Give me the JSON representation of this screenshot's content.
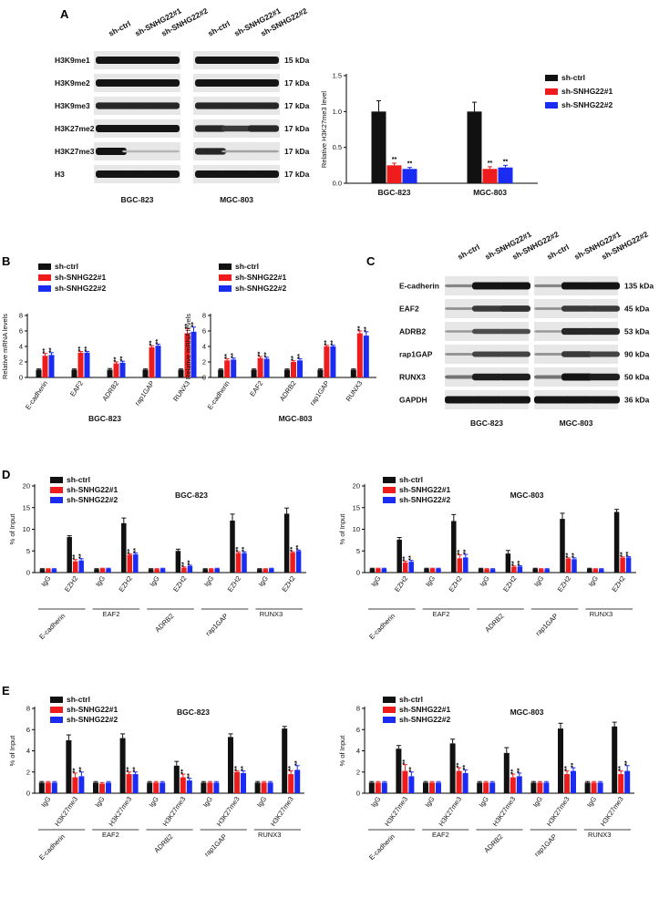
{
  "colors": {
    "ctrl": "#111111",
    "sh1": "#ee1c1c",
    "sh2": "#1a2cf2"
  },
  "legend": {
    "ctrl": "sh-ctrl",
    "sh1": "sh-SNHG22#1",
    "sh2": "sh-SNHG22#2"
  },
  "sig": "**",
  "panelA": {
    "letter": "A",
    "lane_headers": [
      "sh-ctrl",
      "sh-SNHG22#1",
      "sh-SNHG22#2"
    ],
    "rows": [
      {
        "label": "H3K9me1",
        "kda": "15 kDa"
      },
      {
        "label": "H3K9me2",
        "kda": "17 kDa"
      },
      {
        "label": "H3K9me3",
        "kda": "17 kDa"
      },
      {
        "label": "H3K27me2",
        "kda": "17 kDa"
      },
      {
        "label": "H3K27me3",
        "kda": "17 kDa"
      },
      {
        "label": "H3",
        "kda": "17 kDa"
      }
    ],
    "groups": [
      "BGC-823",
      "MGC-803"
    ]
  },
  "panelC": {
    "letter": "C",
    "lane_headers": [
      "sh-ctrl",
      "sh-SNHG22#1",
      "sh-SNHG22#2"
    ],
    "rows": [
      {
        "label": "E-cadherin",
        "kda": "135 kDa"
      },
      {
        "label": "EAF2",
        "kda": "45 kDa"
      },
      {
        "label": "ADRB2",
        "kda": "53 kDa"
      },
      {
        "label": "rap1GAP",
        "kda": "90 kDa"
      },
      {
        "label": "RUNX3",
        "kda": "50 kDa"
      },
      {
        "label": "GAPDH",
        "kda": "36 kDa"
      }
    ],
    "groups": [
      "BGC-823",
      "MGC-803"
    ]
  },
  "chart_data": [
    {
      "id": "A",
      "type": "bar",
      "title": "",
      "ylabel": "Relative H3K27me3 level",
      "ylim": [
        0,
        1.5
      ],
      "yticks": [
        "0.0",
        "0.5",
        "1.0",
        "1.5"
      ],
      "categories": [
        "BGC-823",
        "MGC-803"
      ],
      "series": [
        {
          "name": "sh-ctrl",
          "values": [
            1.0,
            1.0
          ],
          "err": [
            0.15,
            0.13
          ]
        },
        {
          "name": "sh-SNHG22#1",
          "values": [
            0.25,
            0.2
          ],
          "err": [
            0.03,
            0.03
          ]
        },
        {
          "name": "sh-SNHG22#2",
          "values": [
            0.2,
            0.22
          ],
          "err": [
            0.02,
            0.03
          ]
        }
      ],
      "sig": [
        [
          false,
          true,
          true
        ],
        [
          false,
          true,
          true
        ]
      ]
    },
    {
      "id": "B1",
      "type": "bar",
      "title": "BGC-823",
      "ylabel": "Relative mRNA levels",
      "ylim": [
        0,
        8
      ],
      "yticks": [
        "0",
        "2",
        "4",
        "6",
        "8"
      ],
      "categories": [
        "E-cadherin",
        "EAF2",
        "ADRB2",
        "rap1GAP",
        "RUNX3"
      ],
      "series": [
        {
          "name": "sh-ctrl",
          "values": [
            1,
            1,
            1,
            1,
            1
          ],
          "err": [
            0.1,
            0.1,
            0.15,
            0.1,
            0.1
          ]
        },
        {
          "name": "sh-SNHG22#1",
          "values": [
            2.8,
            3.2,
            1.8,
            3.9,
            5.7
          ],
          "err": [
            0.3,
            0.15,
            0.2,
            0.2,
            0.6
          ]
        },
        {
          "name": "sh-SNHG22#2",
          "values": [
            2.9,
            3.2,
            1.9,
            4.1,
            5.9
          ],
          "err": [
            0.3,
            0.15,
            0.2,
            0.2,
            0.6
          ]
        }
      ],
      "sig": [
        [
          false,
          true,
          true
        ],
        [
          false,
          true,
          true
        ],
        [
          false,
          true,
          true
        ],
        [
          false,
          true,
          true
        ],
        [
          false,
          true,
          true
        ]
      ]
    },
    {
      "id": "B2",
      "type": "bar",
      "title": "MGC-803",
      "ylabel": "Relative mRNA levels",
      "ylim": [
        0,
        8
      ],
      "yticks": [
        "0",
        "2",
        "4",
        "6",
        "8"
      ],
      "categories": [
        "E-cadherin",
        "EAF2",
        "ADRB2",
        "rap1GAP",
        "RUNX3"
      ],
      "series": [
        {
          "name": "sh-ctrl",
          "values": [
            1,
            1,
            1,
            1,
            1
          ],
          "err": [
            0.1,
            0.1,
            0.1,
            0.1,
            0.1
          ]
        },
        {
          "name": "sh-SNHG22#1",
          "values": [
            2.2,
            2.5,
            2.0,
            4.0,
            5.7
          ],
          "err": [
            0.2,
            0.2,
            0.15,
            0.15,
            0.3
          ]
        },
        {
          "name": "sh-SNHG22#2",
          "values": [
            2.3,
            2.4,
            2.2,
            4.0,
            5.4
          ],
          "err": [
            0.2,
            0.2,
            0.2,
            0.15,
            0.5
          ]
        }
      ],
      "sig": [
        [
          false,
          true,
          true
        ],
        [
          false,
          true,
          true
        ],
        [
          false,
          true,
          true
        ],
        [
          false,
          true,
          true
        ],
        [
          false,
          true,
          true
        ]
      ]
    },
    {
      "id": "D1",
      "type": "bar",
      "title": "BGC-823",
      "ylabel": "% of Input",
      "ylim": [
        0,
        20
      ],
      "yticks": [
        "0",
        "5",
        "10",
        "15",
        "20"
      ],
      "xlabels": [
        "IgG",
        "EZH2",
        "IgG",
        "EZH2",
        "IgG",
        "EZH2",
        "IgG",
        "EZH2",
        "IgG",
        "EZH2"
      ],
      "groups": [
        "E-cadherin",
        "EAF2",
        "ADRB2",
        "rap1GAP",
        "RUNX3"
      ],
      "series": [
        {
          "name": "sh-ctrl",
          "values": [
            0.8,
            8.2,
            0.8,
            11.4,
            0.8,
            5.0,
            0.8,
            12.0,
            0.8,
            13.6
          ],
          "err": [
            0.1,
            0.3,
            0.1,
            1.2,
            0.1,
            0.4,
            0.1,
            1.5,
            0.1,
            1.3
          ]
        },
        {
          "name": "sh-SNHG22#1",
          "values": [
            0.8,
            2.6,
            0.9,
            4.1,
            0.8,
            1.1,
            0.8,
            4.5,
            0.8,
            4.6
          ],
          "err": [
            0.1,
            0.4,
            0.1,
            0.2,
            0.1,
            0.2,
            0.1,
            0.3,
            0.1,
            0.2
          ]
        },
        {
          "name": "sh-SNHG22#2",
          "values": [
            0.8,
            2.8,
            0.9,
            4.2,
            0.9,
            1.5,
            0.9,
            4.5,
            0.9,
            5.0
          ],
          "err": [
            0.1,
            0.4,
            0.1,
            0.3,
            0.1,
            0.2,
            0.1,
            0.3,
            0.1,
            0.2
          ]
        }
      ],
      "sig": [
        [
          false,
          false,
          false
        ],
        [
          false,
          true,
          true
        ],
        [
          false,
          false,
          false
        ],
        [
          false,
          true,
          true
        ],
        [
          false,
          false,
          false
        ],
        [
          false,
          true,
          true
        ],
        [
          false,
          false,
          false
        ],
        [
          false,
          true,
          true
        ],
        [
          false,
          false,
          false
        ],
        [
          false,
          true,
          true
        ]
      ]
    },
    {
      "id": "D2",
      "type": "bar",
      "title": "MGC-803",
      "ylabel": "% of Input",
      "ylim": [
        0,
        20
      ],
      "yticks": [
        "0",
        "5",
        "10",
        "15",
        "20"
      ],
      "xlabels": [
        "IgG",
        "EZH2",
        "IgG",
        "EZH2",
        "IgG",
        "EZH2",
        "IgG",
        "EZH2",
        "IgG",
        "EZH2"
      ],
      "groups": [
        "E-cadherin",
        "EAF2",
        "ADRB2",
        "rap1GAP",
        "RUNX3"
      ],
      "series": [
        {
          "name": "sh-ctrl",
          "values": [
            0.9,
            7.6,
            0.9,
            11.9,
            0.9,
            4.4,
            0.9,
            12.4,
            0.9,
            14.0
          ],
          "err": [
            0.1,
            0.5,
            0.1,
            1.5,
            0.1,
            0.7,
            0.1,
            1.3,
            0.1,
            0.6
          ]
        },
        {
          "name": "sh-SNHG22#1",
          "values": [
            0.9,
            2.3,
            0.9,
            3.3,
            0.8,
            1.3,
            0.8,
            3.2,
            0.8,
            3.4
          ],
          "err": [
            0.1,
            0.3,
            0.1,
            0.8,
            0.1,
            0.2,
            0.1,
            0.2,
            0.1,
            0.2
          ]
        },
        {
          "name": "sh-SNHG22#2",
          "values": [
            0.9,
            2.5,
            0.9,
            3.5,
            0.8,
            1.4,
            0.8,
            3.1,
            0.8,
            3.5
          ],
          "err": [
            0.1,
            0.3,
            0.1,
            0.7,
            0.1,
            0.2,
            0.1,
            0.3,
            0.1,
            0.2
          ]
        }
      ],
      "sig": [
        [
          false,
          false,
          false
        ],
        [
          false,
          true,
          true
        ],
        [
          false,
          false,
          false
        ],
        [
          false,
          true,
          true
        ],
        [
          false,
          false,
          false
        ],
        [
          false,
          true,
          true
        ],
        [
          false,
          false,
          false
        ],
        [
          false,
          true,
          true
        ],
        [
          false,
          false,
          false
        ],
        [
          false,
          true,
          true
        ]
      ]
    },
    {
      "id": "E1",
      "type": "bar",
      "title": "BGC-823",
      "ylabel": "% of Input",
      "ylim": [
        0,
        8
      ],
      "yticks": [
        "0",
        "2",
        "4",
        "6",
        "8"
      ],
      "xlabels": [
        "IgG",
        "H3K27me3",
        "IgG",
        "H3K27me3",
        "IgG",
        "H3K27me3",
        "IgG",
        "H3K27me3",
        "IgG",
        "H3K27me3"
      ],
      "groups": [
        "E-cadherin",
        "EAF2",
        "ADRB2",
        "rap1GAP",
        "RUNX3"
      ],
      "series": [
        {
          "name": "sh-ctrl",
          "values": [
            1.0,
            5.0,
            1.0,
            5.2,
            1.0,
            2.6,
            1.0,
            5.3,
            1.0,
            6.1
          ],
          "err": [
            0.1,
            0.5,
            0.1,
            0.4,
            0.1,
            0.4,
            0.1,
            0.3,
            0.1,
            0.2
          ]
        },
        {
          "name": "sh-SNHG22#1",
          "values": [
            1.0,
            1.5,
            0.9,
            1.8,
            1.0,
            1.5,
            1.0,
            2.0,
            1.0,
            1.8
          ],
          "err": [
            0.1,
            0.4,
            0.1,
            0.2,
            0.1,
            0.3,
            0.1,
            0.1,
            0.1,
            0.3
          ]
        },
        {
          "name": "sh-SNHG22#2",
          "values": [
            1.0,
            1.6,
            1.0,
            1.8,
            1.0,
            1.2,
            1.0,
            1.9,
            1.0,
            2.2
          ],
          "err": [
            0.1,
            0.4,
            0.1,
            0.2,
            0.1,
            0.2,
            0.1,
            0.2,
            0.1,
            0.4
          ]
        }
      ],
      "sig": [
        [
          false,
          false,
          false
        ],
        [
          false,
          true,
          true
        ],
        [
          false,
          false,
          false
        ],
        [
          false,
          true,
          true
        ],
        [
          false,
          false,
          false
        ],
        [
          false,
          true,
          true
        ],
        [
          false,
          false,
          false
        ],
        [
          false,
          true,
          true
        ],
        [
          false,
          false,
          false
        ],
        [
          false,
          true,
          true
        ]
      ]
    },
    {
      "id": "E2",
      "type": "bar",
      "title": "MGC-803",
      "ylabel": "% of Input",
      "ylim": [
        0,
        8
      ],
      "yticks": [
        "0",
        "2",
        "4",
        "6",
        "8"
      ],
      "xlabels": [
        "IgG",
        "H3K27me3",
        "IgG",
        "H3K27me3",
        "IgG",
        "H3K27me3",
        "IgG",
        "H3K27me3",
        "IgG",
        "H3K27me3"
      ],
      "groups": [
        "E-cadherin",
        "EAF2",
        "ADRB2",
        "rap1GAP",
        "RUNX3"
      ],
      "series": [
        {
          "name": "sh-ctrl",
          "values": [
            1.0,
            4.2,
            1.0,
            4.7,
            1.0,
            3.8,
            1.0,
            6.1,
            1.0,
            6.3
          ],
          "err": [
            0.1,
            0.3,
            0.1,
            0.4,
            0.1,
            0.5,
            0.1,
            0.5,
            0.1,
            0.4
          ]
        },
        {
          "name": "sh-SNHG22#1",
          "values": [
            1.0,
            2.1,
            1.0,
            2.1,
            1.0,
            1.5,
            1.0,
            1.8,
            1.0,
            1.8
          ],
          "err": [
            0.1,
            0.6,
            0.1,
            0.3,
            0.1,
            0.3,
            0.1,
            0.3,
            0.1,
            0.3
          ]
        },
        {
          "name": "sh-SNHG22#2",
          "values": [
            1.0,
            1.6,
            1.0,
            1.9,
            1.0,
            1.6,
            1.0,
            2.1,
            1.0,
            2.1
          ],
          "err": [
            0.1,
            0.4,
            0.1,
            0.3,
            0.1,
            0.3,
            0.1,
            0.3,
            0.1,
            0.5
          ]
        }
      ],
      "sig": [
        [
          false,
          false,
          false
        ],
        [
          false,
          true,
          true
        ],
        [
          false,
          false,
          false
        ],
        [
          false,
          true,
          true
        ],
        [
          false,
          false,
          false
        ],
        [
          false,
          true,
          true
        ],
        [
          false,
          false,
          false
        ],
        [
          false,
          true,
          true
        ],
        [
          false,
          false,
          false
        ],
        [
          false,
          true,
          true
        ]
      ]
    }
  ]
}
